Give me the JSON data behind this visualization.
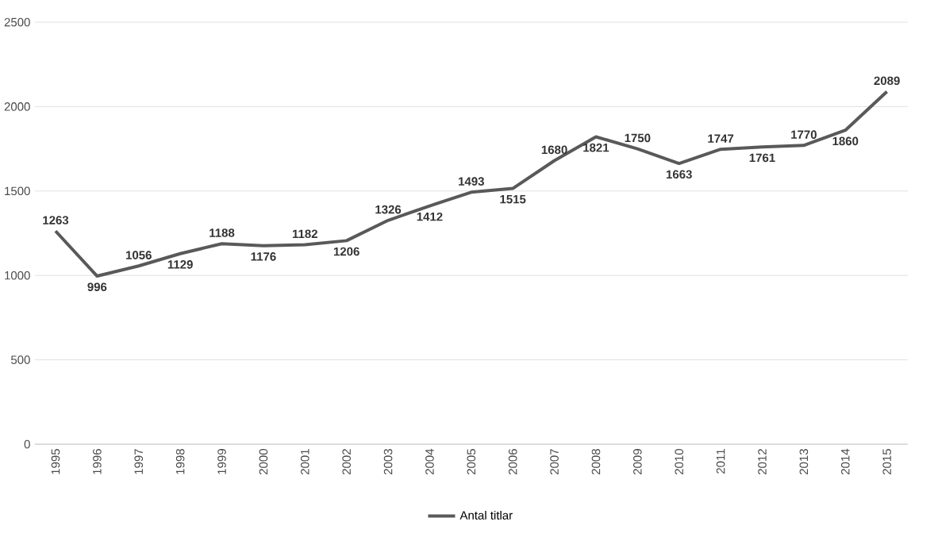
{
  "chart_data": {
    "type": "line",
    "categories": [
      "1995",
      "1996",
      "1997",
      "1998",
      "1999",
      "2000",
      "2001",
      "2002",
      "2003",
      "2004",
      "2005",
      "2006",
      "2007",
      "2008",
      "2009",
      "2010",
      "2011",
      "2012",
      "2013",
      "2014",
      "2015"
    ],
    "series": [
      {
        "name": "Antal titlar",
        "color": "#595959",
        "values": [
          1263,
          996,
          1056,
          1129,
          1188,
          1176,
          1182,
          1206,
          1326,
          1412,
          1493,
          1515,
          1680,
          1821,
          1750,
          1663,
          1747,
          1761,
          1770,
          1860,
          2089
        ],
        "value_labels": [
          "1263",
          "996",
          "1056",
          "1129",
          "1188",
          "1176",
          "1182",
          "1206",
          "1326",
          "1412",
          "1493",
          "1515",
          "1680",
          "1821",
          "1750",
          "1663",
          "1747",
          "1761",
          "1770",
          "1860",
          "2089"
        ]
      }
    ],
    "ylim": [
      0,
      2500
    ],
    "yticks": [
      0,
      500,
      1000,
      1500,
      2000,
      2500
    ],
    "grid": "y",
    "legend": "bottom",
    "marker": "none",
    "line_style": "solid"
  }
}
